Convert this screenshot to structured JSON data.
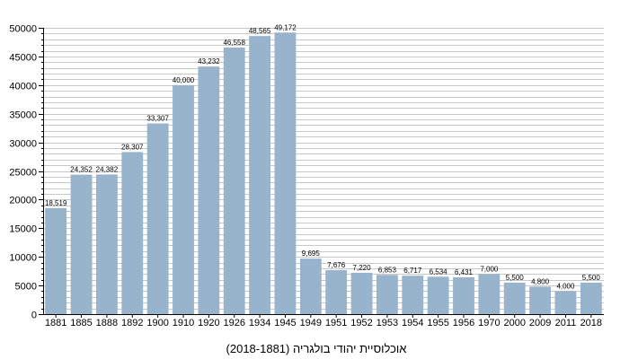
{
  "chart_data": {
    "type": "bar",
    "title": "אוכלוסיית יהודי בולגריה (2018-1881)",
    "xlabel": "",
    "ylabel": "",
    "categories": [
      "1881",
      "1885",
      "1888",
      "1892",
      "1900",
      "1910",
      "1920",
      "1926",
      "1934",
      "1945",
      "1949",
      "1951",
      "1952",
      "1953",
      "1954",
      "1955",
      "1956",
      "1970",
      "2000",
      "2009",
      "2011",
      "2018"
    ],
    "values": [
      18519,
      24352,
      24382,
      28307,
      33307,
      40000,
      43232,
      46558,
      48565,
      49172,
      9695,
      7676,
      7220,
      6853,
      6717,
      6534,
      6431,
      7000,
      5500,
      4800,
      4000,
      5500
    ],
    "value_labels": [
      "18,519",
      "24,352",
      "24,382",
      "28,307",
      "33,307",
      "40,000",
      "43,232",
      "46,558",
      "48,565",
      "49,172",
      "9,695",
      "7,676",
      "7,220",
      "6,853",
      "6,717",
      "6,534",
      "6,431",
      "7,000",
      "5,500",
      "4,800",
      "4,000",
      "5,500"
    ],
    "ylim": [
      0,
      50000
    ],
    "y_ticks": [
      0,
      5000,
      10000,
      15000,
      20000,
      25000,
      30000,
      35000,
      40000,
      45000,
      50000
    ],
    "y_minor_step": 1000,
    "grid": true,
    "legend": "none",
    "bar_color": "#98b3cc",
    "grid_color": "#c8c8c8",
    "axis_color": "#000000"
  }
}
